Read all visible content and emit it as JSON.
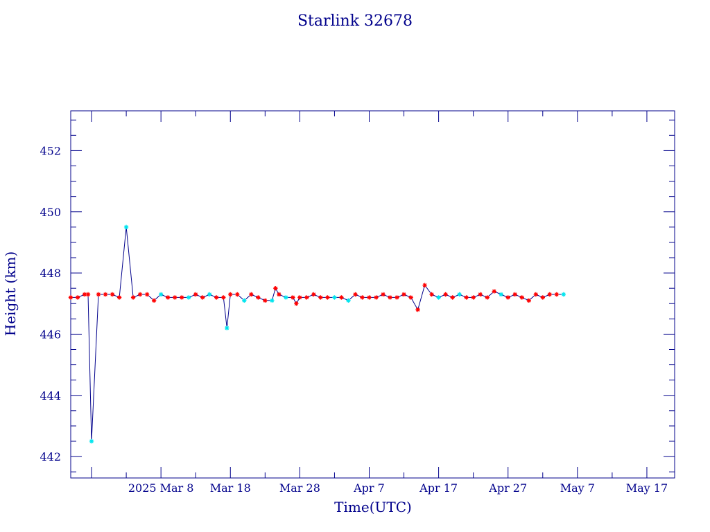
{
  "chart_data": {
    "type": "line",
    "title": "Starlink 32678",
    "xlabel": "Time(UTC)",
    "ylabel": "Height (km)",
    "x_tick_labels": [
      "2025 Mar  8",
      "Mar 18",
      "Mar 28",
      "Apr  7",
      "Apr 17",
      "Apr 27",
      "May  7",
      "May 17"
    ],
    "x_tick_dates": [
      "2025-03-08",
      "2025-03-18",
      "2025-03-28",
      "2025-04-07",
      "2025-04-17",
      "2025-04-27",
      "2025-05-07",
      "2025-05-17"
    ],
    "xlim": [
      "2025-02-23",
      "2025-05-21"
    ],
    "y_ticks": [
      442,
      444,
      446,
      448,
      450,
      452
    ],
    "ylim": [
      441.3,
      453.3
    ],
    "grid": false,
    "colors": {
      "axis": "#00008b",
      "line": "#00008b",
      "marker_primary": "#ff0000",
      "marker_secondary": "#00e5ee"
    },
    "series": [
      {
        "marker": "star",
        "points": [
          {
            "x": "2025-02-23",
            "y": 447.2,
            "c": "primary"
          },
          {
            "x": "2025-02-24",
            "y": 447.2,
            "c": "primary"
          },
          {
            "x": "2025-02-25",
            "y": 447.3,
            "c": "primary"
          },
          {
            "x": "2025-02-25",
            "y": 447.3,
            "c": "primary"
          },
          {
            "x": "2025-02-26",
            "y": 442.5,
            "c": "secondary"
          },
          {
            "x": "2025-02-27",
            "y": 447.3,
            "c": "primary"
          },
          {
            "x": "2025-02-28",
            "y": 447.3,
            "c": "primary"
          },
          {
            "x": "2025-03-01",
            "y": 447.3,
            "c": "primary"
          },
          {
            "x": "2025-03-02",
            "y": 447.2,
            "c": "primary"
          },
          {
            "x": "2025-03-03",
            "y": 449.5,
            "c": "secondary"
          },
          {
            "x": "2025-03-04",
            "y": 447.2,
            "c": "primary"
          },
          {
            "x": "2025-03-05",
            "y": 447.3,
            "c": "primary"
          },
          {
            "x": "2025-03-06",
            "y": 447.3,
            "c": "primary"
          },
          {
            "x": "2025-03-07",
            "y": 447.1,
            "c": "primary"
          },
          {
            "x": "2025-03-08",
            "y": 447.3,
            "c": "secondary"
          },
          {
            "x": "2025-03-09",
            "y": 447.2,
            "c": "primary"
          },
          {
            "x": "2025-03-10",
            "y": 447.2,
            "c": "primary"
          },
          {
            "x": "2025-03-11",
            "y": 447.2,
            "c": "primary"
          },
          {
            "x": "2025-03-12",
            "y": 447.2,
            "c": "secondary"
          },
          {
            "x": "2025-03-13",
            "y": 447.3,
            "c": "primary"
          },
          {
            "x": "2025-03-14",
            "y": 447.2,
            "c": "primary"
          },
          {
            "x": "2025-03-15",
            "y": 447.3,
            "c": "secondary"
          },
          {
            "x": "2025-03-16",
            "y": 447.2,
            "c": "primary"
          },
          {
            "x": "2025-03-17",
            "y": 447.2,
            "c": "primary"
          },
          {
            "x": "2025-03-17",
            "y": 446.2,
            "c": "secondary"
          },
          {
            "x": "2025-03-18",
            "y": 447.3,
            "c": "primary"
          },
          {
            "x": "2025-03-19",
            "y": 447.3,
            "c": "primary"
          },
          {
            "x": "2025-03-20",
            "y": 447.1,
            "c": "secondary"
          },
          {
            "x": "2025-03-21",
            "y": 447.3,
            "c": "primary"
          },
          {
            "x": "2025-03-22",
            "y": 447.2,
            "c": "primary"
          },
          {
            "x": "2025-03-23",
            "y": 447.1,
            "c": "primary"
          },
          {
            "x": "2025-03-24",
            "y": 447.1,
            "c": "secondary"
          },
          {
            "x": "2025-03-24",
            "y": 447.5,
            "c": "primary"
          },
          {
            "x": "2025-03-25",
            "y": 447.3,
            "c": "primary"
          },
          {
            "x": "2025-03-26",
            "y": 447.2,
            "c": "secondary"
          },
          {
            "x": "2025-03-27",
            "y": 447.2,
            "c": "primary"
          },
          {
            "x": "2025-03-27",
            "y": 447.0,
            "c": "primary"
          },
          {
            "x": "2025-03-28",
            "y": 447.2,
            "c": "primary"
          },
          {
            "x": "2025-03-29",
            "y": 447.2,
            "c": "primary"
          },
          {
            "x": "2025-03-30",
            "y": 447.3,
            "c": "primary"
          },
          {
            "x": "2025-03-31",
            "y": 447.2,
            "c": "primary"
          },
          {
            "x": "2025-04-01",
            "y": 447.2,
            "c": "primary"
          },
          {
            "x": "2025-04-02",
            "y": 447.2,
            "c": "secondary"
          },
          {
            "x": "2025-04-03",
            "y": 447.2,
            "c": "primary"
          },
          {
            "x": "2025-04-04",
            "y": 447.1,
            "c": "secondary"
          },
          {
            "x": "2025-04-05",
            "y": 447.3,
            "c": "primary"
          },
          {
            "x": "2025-04-06",
            "y": 447.2,
            "c": "primary"
          },
          {
            "x": "2025-04-07",
            "y": 447.2,
            "c": "primary"
          },
          {
            "x": "2025-04-08",
            "y": 447.2,
            "c": "primary"
          },
          {
            "x": "2025-04-09",
            "y": 447.3,
            "c": "primary"
          },
          {
            "x": "2025-04-10",
            "y": 447.2,
            "c": "primary"
          },
          {
            "x": "2025-04-11",
            "y": 447.2,
            "c": "primary"
          },
          {
            "x": "2025-04-12",
            "y": 447.3,
            "c": "primary"
          },
          {
            "x": "2025-04-13",
            "y": 447.2,
            "c": "primary"
          },
          {
            "x": "2025-04-14",
            "y": 446.8,
            "c": "primary"
          },
          {
            "x": "2025-04-15",
            "y": 447.6,
            "c": "primary"
          },
          {
            "x": "2025-04-16",
            "y": 447.3,
            "c": "primary"
          },
          {
            "x": "2025-04-17",
            "y": 447.2,
            "c": "secondary"
          },
          {
            "x": "2025-04-18",
            "y": 447.3,
            "c": "primary"
          },
          {
            "x": "2025-04-19",
            "y": 447.2,
            "c": "primary"
          },
          {
            "x": "2025-04-20",
            "y": 447.3,
            "c": "secondary"
          },
          {
            "x": "2025-04-21",
            "y": 447.2,
            "c": "primary"
          },
          {
            "x": "2025-04-22",
            "y": 447.2,
            "c": "primary"
          },
          {
            "x": "2025-04-23",
            "y": 447.3,
            "c": "primary"
          },
          {
            "x": "2025-04-24",
            "y": 447.2,
            "c": "primary"
          },
          {
            "x": "2025-04-25",
            "y": 447.4,
            "c": "primary"
          },
          {
            "x": "2025-04-26",
            "y": 447.3,
            "c": "secondary"
          },
          {
            "x": "2025-04-27",
            "y": 447.2,
            "c": "primary"
          },
          {
            "x": "2025-04-28",
            "y": 447.3,
            "c": "primary"
          },
          {
            "x": "2025-04-29",
            "y": 447.2,
            "c": "primary"
          },
          {
            "x": "2025-04-30",
            "y": 447.1,
            "c": "primary"
          },
          {
            "x": "2025-05-01",
            "y": 447.3,
            "c": "primary"
          },
          {
            "x": "2025-05-02",
            "y": 447.2,
            "c": "primary"
          },
          {
            "x": "2025-05-03",
            "y": 447.3,
            "c": "primary"
          },
          {
            "x": "2025-05-04",
            "y": 447.3,
            "c": "primary"
          },
          {
            "x": "2025-05-05",
            "y": 447.3,
            "c": "secondary"
          }
        ]
      }
    ]
  }
}
